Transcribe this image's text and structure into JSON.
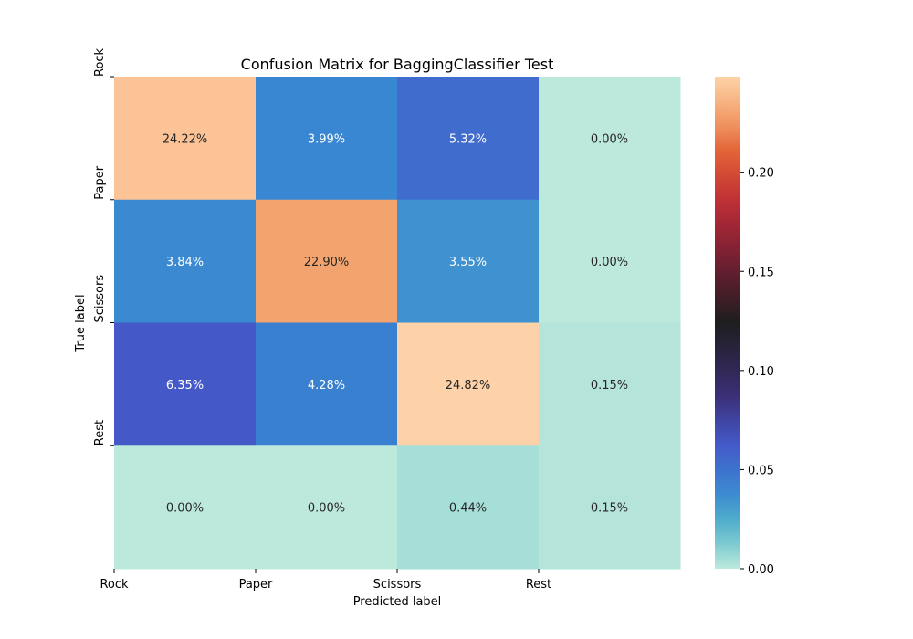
{
  "chart_data": {
    "type": "heatmap",
    "title": "Confusion Matrix for BaggingClassifier Test",
    "xlabel": "Predicted label",
    "ylabel": "True label",
    "x_tick_labels": [
      "Rock",
      "Paper",
      "Scissors",
      "Rest"
    ],
    "y_tick_labels": [
      "Rock",
      "Paper",
      "Scissors",
      "Rest"
    ],
    "values": [
      [
        0.2422,
        0.0399,
        0.0532,
        0.0
      ],
      [
        0.0384,
        0.229,
        0.0355,
        0.0
      ],
      [
        0.0635,
        0.0428,
        0.2482,
        0.0015
      ],
      [
        0.0,
        0.0,
        0.0044,
        0.0015
      ]
    ],
    "annotations": [
      [
        "24.22%",
        "3.99%",
        "5.32%",
        "0.00%"
      ],
      [
        "3.84%",
        "22.90%",
        "3.55%",
        "0.00%"
      ],
      [
        "6.35%",
        "4.28%",
        "24.82%",
        "0.15%"
      ],
      [
        "0.00%",
        "0.00%",
        "0.44%",
        "0.15%"
      ]
    ],
    "colorbar": {
      "vmin": 0.0,
      "vmax": 0.2482,
      "ticks": [
        0.0,
        0.05,
        0.1,
        0.15,
        0.2
      ],
      "tick_labels": [
        "0.00",
        "0.05",
        "0.10",
        "0.15",
        "0.20"
      ]
    },
    "colormap": "icefire"
  }
}
